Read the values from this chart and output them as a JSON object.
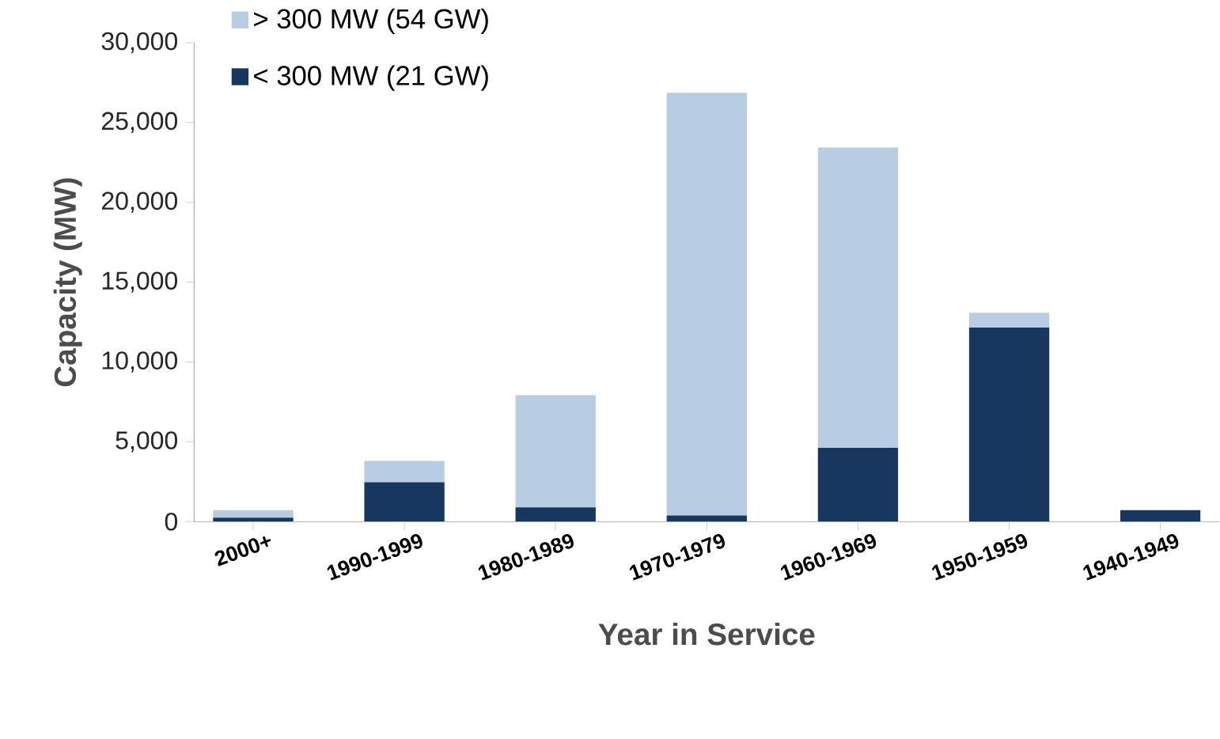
{
  "chart_data": {
    "type": "bar",
    "stacked": true,
    "xlabel": "Year in Service",
    "ylabel": "Capacity (MW)",
    "categories": [
      "2000+",
      "1990-1999",
      "1980-1989",
      "1970-1979",
      "1960-1969",
      "1950-1959",
      "1940-1949"
    ],
    "series": [
      {
        "name": "< 300 MW (21 GW)",
        "color": "#17375e",
        "values": [
          250,
          2460,
          890,
          380,
          4620,
          12160,
          720
        ]
      },
      {
        "name": "> 300 MW (54 GW)",
        "color": "#b8cce4",
        "values": [
          470,
          1350,
          7030,
          26480,
          18810,
          930,
          0
        ]
      }
    ],
    "ylim": [
      0,
      30000
    ],
    "yticks": [
      {
        "value": 0,
        "label": "0"
      },
      {
        "value": 5000,
        "label": "5,000"
      },
      {
        "value": 10000,
        "label": "10,000"
      },
      {
        "value": 15000,
        "label": "15,000"
      },
      {
        "value": 20000,
        "label": "20,000"
      },
      {
        "value": 25000,
        "label": "25,000"
      },
      {
        "value": 30000,
        "label": "30,000"
      }
    ],
    "grid": false,
    "legend": "top left"
  }
}
